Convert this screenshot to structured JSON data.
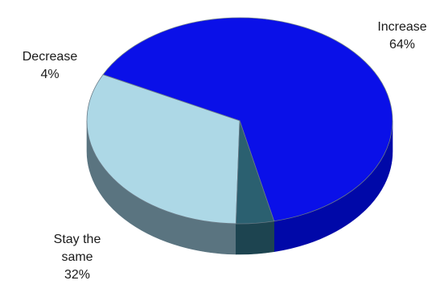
{
  "chart_data": {
    "type": "pie",
    "style": "3d",
    "slices": [
      {
        "label": "Increase",
        "value": 64,
        "value_label": "64%",
        "color": "#0a10e8",
        "side_color": "#0008a8"
      },
      {
        "label": "Stay the same",
        "value": 32,
        "value_label": "32%",
        "color": "#add8e6",
        "side_color": "#5a7480"
      },
      {
        "label": "Decrease",
        "value": 4,
        "value_label": "4%",
        "color": "#2b6070",
        "side_color": "#1d4450"
      }
    ],
    "legend": "none"
  }
}
